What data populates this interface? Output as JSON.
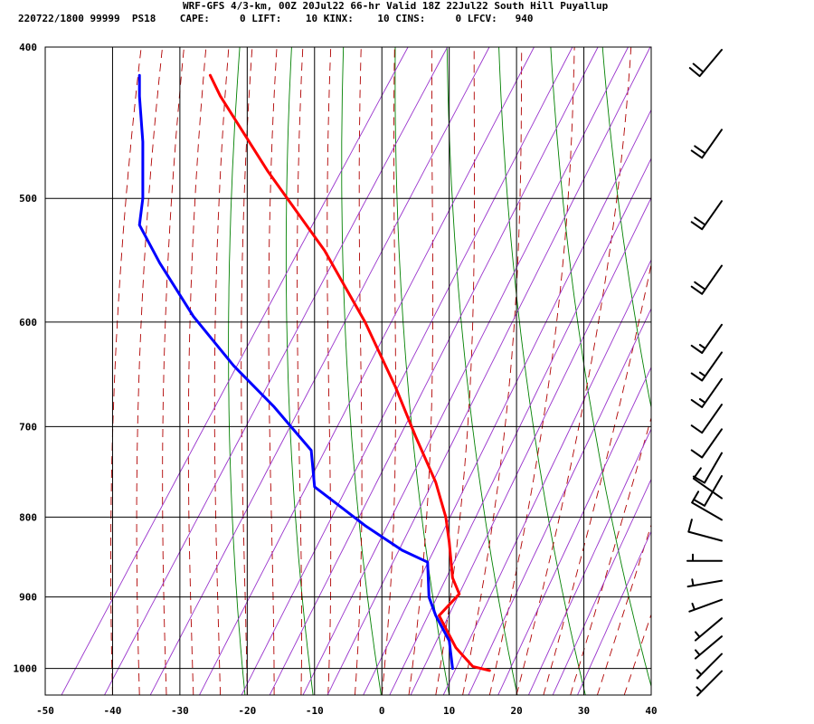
{
  "header": {
    "line1": "WRF-GFS 4/3-km, 00Z 20Jul22 66-hr Valid 18Z 22Jul22 South Hill Puyallup",
    "line2": "220722/1800 99999  PS18    CAPE:     0 LIFT:    10 KINX:    10 CINS:     0 LFCV:   940"
  },
  "chart_data": {
    "type": "line",
    "title": "WRF-GFS 4/3-km, 00Z 20Jul22 66-hr Valid 18Z 22Jul22 South Hill Puyallup",
    "xlabel": "",
    "ylabel": "",
    "x_ticks": [
      -50,
      -40,
      -30,
      -20,
      -10,
      0,
      10,
      20,
      30,
      40
    ],
    "x_tick_labels": [
      "-50",
      "-40",
      "-30",
      "-20",
      "-10",
      "0",
      "10",
      "20",
      "30",
      "40"
    ],
    "y_ticks": [
      400,
      500,
      600,
      700,
      800,
      900,
      1000
    ],
    "y_tick_labels": [
      "400",
      "500",
      "600",
      "700",
      "800",
      "900",
      "1000"
    ],
    "xlim": [
      -50,
      40
    ],
    "ylim": [
      1040,
      400
    ],
    "y_scale": "log-pressure",
    "grid": true,
    "series": [
      {
        "color": "#ff0000",
        "points": [
          [
            16,
            1003
          ],
          [
            13.5,
            997
          ],
          [
            11,
            970
          ],
          [
            8.5,
            925
          ],
          [
            11.5,
            896
          ],
          [
            10.5,
            875
          ],
          [
            10,
            830
          ],
          [
            9.5,
            800
          ],
          [
            8,
            760
          ],
          [
            5,
            710
          ],
          [
            2,
            660
          ],
          [
            -2.5,
            600
          ],
          [
            -8.5,
            540
          ],
          [
            -17,
            480
          ],
          [
            -24,
            430
          ],
          [
            -25.5,
            417
          ]
        ]
      },
      {
        "color": "#0000ff",
        "points": [
          [
            10.5,
            1000
          ],
          [
            10,
            960
          ],
          [
            8,
            925
          ],
          [
            7,
            900
          ],
          [
            6.8,
            855
          ],
          [
            3,
            840
          ],
          [
            -2.5,
            810
          ],
          [
            -10,
            765
          ],
          [
            -10.5,
            725
          ],
          [
            -16,
            680
          ],
          [
            -22,
            640
          ],
          [
            -28,
            595
          ],
          [
            -33,
            550
          ],
          [
            -36,
            520
          ],
          [
            -35.5,
            500
          ],
          [
            -35.5,
            460
          ],
          [
            -36,
            430
          ],
          [
            -36,
            417
          ]
        ]
      }
    ],
    "wind_barbs": [
      {
        "p": 1000,
        "dir": 225,
        "spd": 5
      },
      {
        "p": 975,
        "dir": 225,
        "spd": 5
      },
      {
        "p": 950,
        "dir": 230,
        "spd": 5
      },
      {
        "p": 925,
        "dir": 230,
        "spd": 5
      },
      {
        "p": 900,
        "dir": 250,
        "spd": 5
      },
      {
        "p": 875,
        "dir": 260,
        "spd": 5
      },
      {
        "p": 850,
        "dir": 270,
        "spd": 5
      },
      {
        "p": 825,
        "dir": 285,
        "spd": 10
      },
      {
        "p": 800,
        "dir": 300,
        "spd": 10
      },
      {
        "p": 775,
        "dir": 305,
        "spd": 10
      },
      {
        "p": 750,
        "dir": 210,
        "spd": 10
      },
      {
        "p": 725,
        "dir": 210,
        "spd": 10
      },
      {
        "p": 700,
        "dir": 215,
        "spd": 10
      },
      {
        "p": 675,
        "dir": 215,
        "spd": 10
      },
      {
        "p": 650,
        "dir": 215,
        "spd": 15
      },
      {
        "p": 625,
        "dir": 215,
        "spd": 15
      },
      {
        "p": 600,
        "dir": 215,
        "spd": 15
      },
      {
        "p": 550,
        "dir": 215,
        "spd": 20
      },
      {
        "p": 500,
        "dir": 215,
        "spd": 20
      },
      {
        "p": 450,
        "dir": 215,
        "spd": 20
      },
      {
        "p": 400,
        "dir": 220,
        "spd": 20
      }
    ],
    "colors": {
      "isotherm_grid": "#000000",
      "isobar_grid": "#000000",
      "dry_adiabat": "#008000",
      "moist_adiabat": "#b00000",
      "mixing_ratio": "#9933cc",
      "temperature": "#ff0000",
      "dewpoint": "#0000ff",
      "wind_barb": "#000000"
    }
  }
}
